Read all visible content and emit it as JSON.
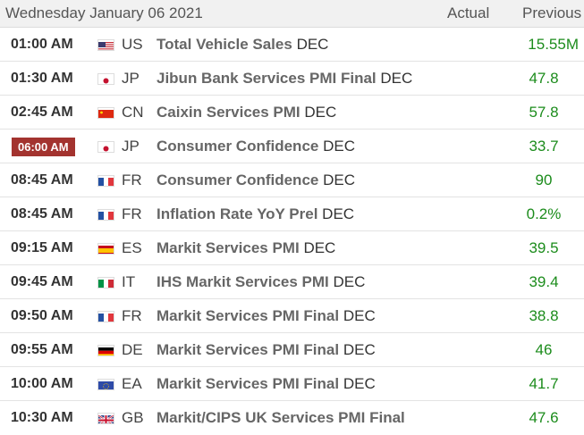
{
  "header": {
    "date": "Wednesday January 06 2021",
    "actual_label": "Actual",
    "previous_label": "Previous"
  },
  "rows": [
    {
      "time": "01:00 AM",
      "country": "US",
      "flag": "us-flag",
      "event_bold": "Total Vehicle Sales",
      "event_period": "DEC",
      "previous": "15.55M",
      "highlight": false
    },
    {
      "time": "01:30 AM",
      "country": "JP",
      "flag": "jp-flag",
      "event_bold": "Jibun Bank Services PMI Final",
      "event_period": "DEC",
      "previous": "47.8",
      "highlight": false
    },
    {
      "time": "02:45 AM",
      "country": "CN",
      "flag": "cn-flag",
      "event_bold": "Caixin Services PMI",
      "event_period": "DEC",
      "previous": "57.8",
      "highlight": false
    },
    {
      "time": "06:00 AM",
      "country": "JP",
      "flag": "jp-flag",
      "event_bold": "Consumer Confidence",
      "event_period": "DEC",
      "previous": "33.7",
      "highlight": true
    },
    {
      "time": "08:45 AM",
      "country": "FR",
      "flag": "fr-flag",
      "event_bold": "Consumer Confidence",
      "event_period": "DEC",
      "previous": "90",
      "highlight": false
    },
    {
      "time": "08:45 AM",
      "country": "FR",
      "flag": "fr-flag",
      "event_bold": "Inflation Rate YoY Prel",
      "event_period": "DEC",
      "previous": "0.2%",
      "highlight": false
    },
    {
      "time": "09:15 AM",
      "country": "ES",
      "flag": "es-flag",
      "event_bold": "Markit Services PMI",
      "event_period": "DEC",
      "previous": "39.5",
      "highlight": false
    },
    {
      "time": "09:45 AM",
      "country": "IT",
      "flag": "it-flag",
      "event_bold": "IHS Markit Services PMI",
      "event_period": "DEC",
      "previous": "39.4",
      "highlight": false
    },
    {
      "time": "09:50 AM",
      "country": "FR",
      "flag": "fr-flag",
      "event_bold": "Markit Services PMI Final",
      "event_period": "DEC",
      "previous": "38.8",
      "highlight": false
    },
    {
      "time": "09:55 AM",
      "country": "DE",
      "flag": "de-flag",
      "event_bold": "Markit Services PMI Final",
      "event_period": "DEC",
      "previous": "46",
      "highlight": false
    },
    {
      "time": "10:00 AM",
      "country": "EA",
      "flag": "eu-flag",
      "event_bold": "Markit Services PMI Final",
      "event_period": "DEC",
      "previous": "41.7",
      "highlight": false
    },
    {
      "time": "10:30 AM",
      "country": "GB",
      "flag": "gb-flag",
      "event_bold": "Markit/CIPS UK Services PMI Final",
      "event_period": "",
      "previous": "47.6",
      "highlight": false
    }
  ],
  "colors": {
    "time_highlight": "#a3332f",
    "previous_value": "#1c8c1c",
    "header_bg": "#f1f1f1"
  }
}
